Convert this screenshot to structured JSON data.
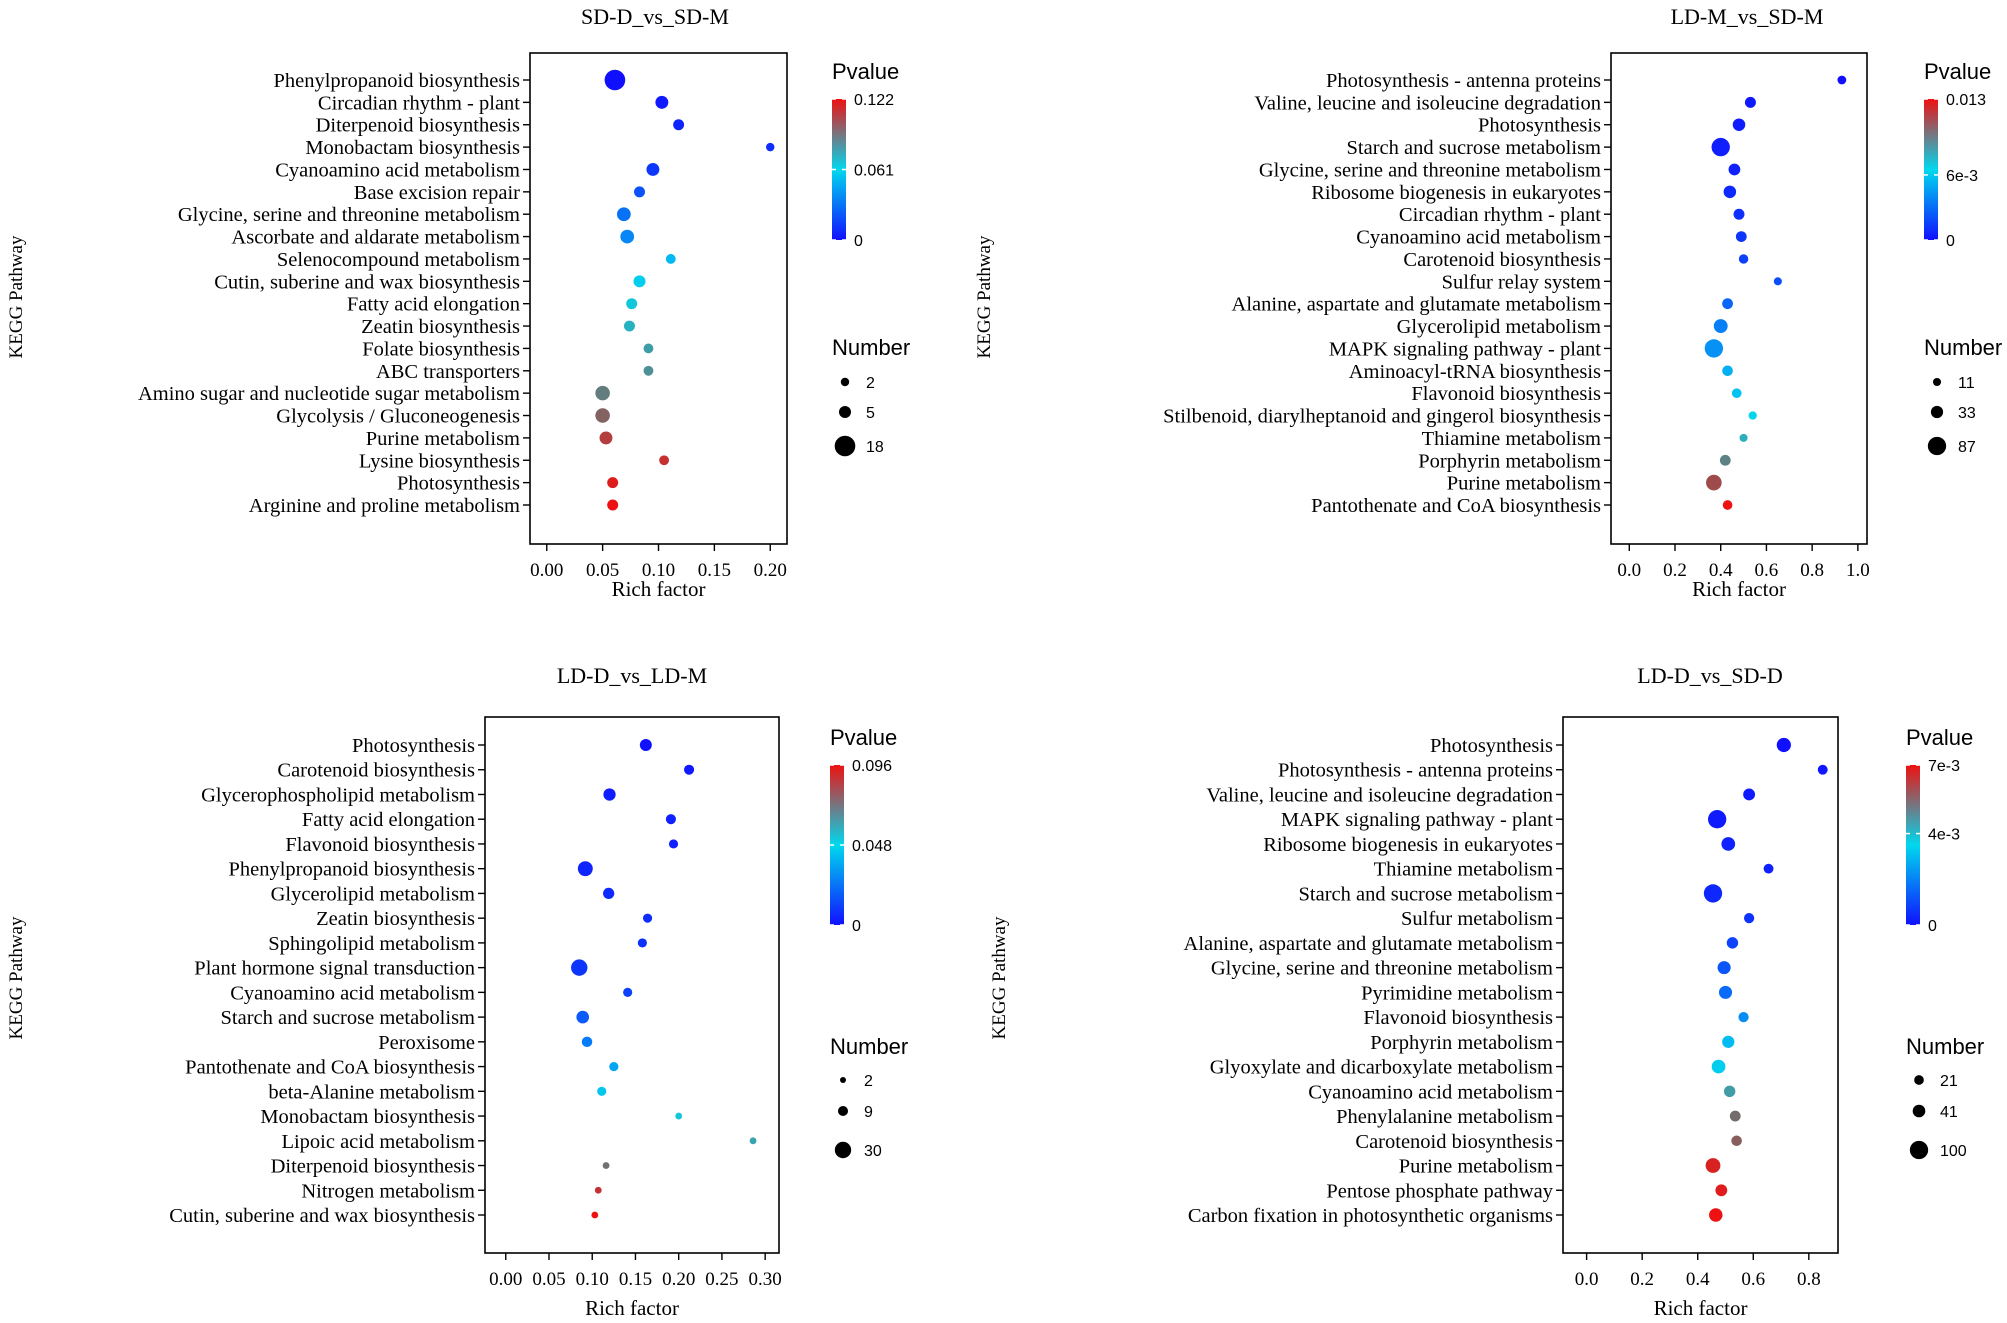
{
  "chart_data": [
    {
      "id": "p1",
      "type": "scatter",
      "title": "SD-D_vs_SD-M",
      "xlabel": "Rich factor",
      "ylabel": "KEGG Pathway",
      "xlim": [
        -0.015,
        0.215
      ],
      "xticks": [
        "0.00",
        "0.05",
        "0.10",
        "0.15",
        "0.20"
      ],
      "xtick_values": [
        0,
        0.05,
        0.1,
        0.15,
        0.2
      ],
      "grid": false,
      "colorbar": {
        "title": "Pvalue",
        "max": 0.122,
        "labels": [
          "0.122",
          "0.061",
          "0"
        ],
        "label_values": [
          0.122,
          0.061,
          0
        ]
      },
      "size_legend": {
        "title": "Number",
        "labels": [
          "2",
          "5",
          "18"
        ],
        "values": [
          2,
          5,
          18
        ]
      },
      "pathways": [
        {
          "name": "Phenylpropanoid biosynthesis",
          "x": 0.061,
          "count": 18,
          "pvalue": 0.0
        },
        {
          "name": "Circadian rhythm - plant",
          "x": 0.103,
          "count": 6,
          "pvalue": 0.003
        },
        {
          "name": "Diterpenoid biosynthesis",
          "x": 0.118,
          "count": 4,
          "pvalue": 0.006
        },
        {
          "name": "Monobactam biosynthesis",
          "x": 0.2,
          "count": 2,
          "pvalue": 0.009
        },
        {
          "name": "Cyanoamino acid metabolism",
          "x": 0.095,
          "count": 6,
          "pvalue": 0.012
        },
        {
          "name": "Base excision repair",
          "x": 0.083,
          "count": 4,
          "pvalue": 0.02
        },
        {
          "name": "Glycine, serine and threonine metabolism",
          "x": 0.069,
          "count": 7,
          "pvalue": 0.03
        },
        {
          "name": "Ascorbate and aldarate metabolism",
          "x": 0.072,
          "count": 7,
          "pvalue": 0.036
        },
        {
          "name": "Selenocompound metabolism",
          "x": 0.111,
          "count": 3,
          "pvalue": 0.052
        },
        {
          "name": "Cutin, suberine and wax biosynthesis",
          "x": 0.083,
          "count": 5,
          "pvalue": 0.058
        },
        {
          "name": "Fatty acid elongation",
          "x": 0.076,
          "count": 4,
          "pvalue": 0.066
        },
        {
          "name": "Zeatin biosynthesis",
          "x": 0.074,
          "count": 4,
          "pvalue": 0.072
        },
        {
          "name": "Folate biosynthesis",
          "x": 0.091,
          "count": 3,
          "pvalue": 0.078
        },
        {
          "name": "ABC transporters",
          "x": 0.091,
          "count": 3,
          "pvalue": 0.082
        },
        {
          "name": "Amino sugar and nucleotide sugar metabolism",
          "x": 0.05,
          "count": 8,
          "pvalue": 0.088
        },
        {
          "name": "Glycolysis / Gluconeogenesis",
          "x": 0.05,
          "count": 8,
          "pvalue": 0.096
        },
        {
          "name": "Purine metabolism",
          "x": 0.053,
          "count": 6,
          "pvalue": 0.108
        },
        {
          "name": "Lysine biosynthesis",
          "x": 0.105,
          "count": 3,
          "pvalue": 0.112
        },
        {
          "name": "Photosynthesis",
          "x": 0.059,
          "count": 4,
          "pvalue": 0.118
        },
        {
          "name": "Arginine and proline metabolism",
          "x": 0.059,
          "count": 4,
          "pvalue": 0.122
        }
      ]
    },
    {
      "id": "p2",
      "type": "scatter",
      "title": "LD-M_vs_SD-M",
      "xlabel": "Rich factor",
      "ylabel": "KEGG Pathway",
      "xlim": [
        -0.08,
        1.04
      ],
      "xticks": [
        "0.0",
        "0.2",
        "0.4",
        "0.6",
        "0.8",
        "1.0"
      ],
      "xtick_values": [
        0,
        0.2,
        0.4,
        0.6,
        0.8,
        1.0
      ],
      "grid": false,
      "colorbar": {
        "title": "Pvalue",
        "max": 0.013,
        "labels": [
          "0.013",
          "6e-3",
          "0"
        ],
        "label_values": [
          0.013,
          0.006,
          0
        ]
      },
      "size_legend": {
        "title": "Number",
        "labels": [
          "11",
          "33",
          "87"
        ],
        "values": [
          11,
          33,
          87
        ]
      },
      "pathways": [
        {
          "name": "Photosynthesis - antenna proteins",
          "x": 0.93,
          "count": 14,
          "pvalue": 0.0
        },
        {
          "name": "Valine, leucine and isoleucine degradation",
          "x": 0.53,
          "count": 25,
          "pvalue": 0.0003
        },
        {
          "name": "Photosynthesis",
          "x": 0.48,
          "count": 35,
          "pvalue": 0.0004
        },
        {
          "name": "Starch and sucrose metabolism",
          "x": 0.4,
          "count": 87,
          "pvalue": 0.0005
        },
        {
          "name": "Glycine, serine and threonine metabolism",
          "x": 0.46,
          "count": 30,
          "pvalue": 0.0006
        },
        {
          "name": "Ribosome biogenesis in eukaryotes",
          "x": 0.44,
          "count": 35,
          "pvalue": 0.0008
        },
        {
          "name": "Circadian rhythm - plant",
          "x": 0.48,
          "count": 25,
          "pvalue": 0.001
        },
        {
          "name": "Cyanoamino acid metabolism",
          "x": 0.49,
          "count": 24,
          "pvalue": 0.0012
        },
        {
          "name": "Carotenoid biosynthesis",
          "x": 0.5,
          "count": 17,
          "pvalue": 0.0016
        },
        {
          "name": "Sulfur relay system",
          "x": 0.65,
          "count": 11,
          "pvalue": 0.002
        },
        {
          "name": "Alanine, aspartate and glutamate metabolism",
          "x": 0.43,
          "count": 24,
          "pvalue": 0.0028
        },
        {
          "name": "Glycerolipid metabolism",
          "x": 0.4,
          "count": 45,
          "pvalue": 0.0036
        },
        {
          "name": "MAPK signaling pathway - plant",
          "x": 0.37,
          "count": 87,
          "pvalue": 0.0042
        },
        {
          "name": "Aminoacyl-tRNA biosynthesis",
          "x": 0.43,
          "count": 23,
          "pvalue": 0.0052
        },
        {
          "name": "Flavonoid biosynthesis",
          "x": 0.47,
          "count": 18,
          "pvalue": 0.0058
        },
        {
          "name": "Stilbenoid, diarylheptanoid and gingerol biosynthesis",
          "x": 0.54,
          "count": 12,
          "pvalue": 0.0066
        },
        {
          "name": "Thiamine metabolism",
          "x": 0.5,
          "count": 11,
          "pvalue": 0.0078
        },
        {
          "name": "Porphyrin metabolism",
          "x": 0.42,
          "count": 24,
          "pvalue": 0.0092
        },
        {
          "name": "Purine metabolism",
          "x": 0.37,
          "count": 60,
          "pvalue": 0.011
        },
        {
          "name": "Pantothenate and CoA biosynthesis",
          "x": 0.43,
          "count": 18,
          "pvalue": 0.013
        }
      ]
    },
    {
      "id": "p3",
      "type": "scatter",
      "title": "LD-D_vs_LD-M",
      "xlabel": "Rich factor",
      "ylabel": "KEGG Pathway",
      "xlim": [
        -0.024,
        0.316
      ],
      "xticks": [
        "0.00",
        "0.05",
        "0.10",
        "0.15",
        "0.20",
        "0.25",
        "0.30"
      ],
      "xtick_values": [
        0,
        0.05,
        0.1,
        0.15,
        0.2,
        0.25,
        0.3
      ],
      "grid": false,
      "colorbar": {
        "title": "Pvalue",
        "max": 0.096,
        "labels": [
          "0.096",
          "0.048",
          "0"
        ],
        "label_values": [
          0.096,
          0.048,
          0
        ]
      },
      "size_legend": {
        "title": "Number",
        "labels": [
          "2",
          "9",
          "30"
        ],
        "values": [
          2,
          9,
          30
        ]
      },
      "pathways": [
        {
          "name": "Photosynthesis",
          "x": 0.162,
          "count": 14,
          "pvalue": 0.0
        },
        {
          "name": "Carotenoid biosynthesis",
          "x": 0.212,
          "count": 9,
          "pvalue": 0.002
        },
        {
          "name": "Glycerophospholipid metabolism",
          "x": 0.12,
          "count": 15,
          "pvalue": 0.003
        },
        {
          "name": "Fatty acid elongation",
          "x": 0.191,
          "count": 9,
          "pvalue": 0.004
        },
        {
          "name": "Flavonoid biosynthesis",
          "x": 0.194,
          "count": 7,
          "pvalue": 0.004
        },
        {
          "name": "Phenylpropanoid biosynthesis",
          "x": 0.092,
          "count": 24,
          "pvalue": 0.005
        },
        {
          "name": "Glycerolipid metabolism",
          "x": 0.119,
          "count": 12,
          "pvalue": 0.006
        },
        {
          "name": "Zeatin biosynthesis",
          "x": 0.164,
          "count": 7,
          "pvalue": 0.007
        },
        {
          "name": "Sphingolipid metabolism",
          "x": 0.158,
          "count": 7,
          "pvalue": 0.008
        },
        {
          "name": "Plant hormone signal transduction",
          "x": 0.085,
          "count": 30,
          "pvalue": 0.009
        },
        {
          "name": "Cyanoamino acid metabolism",
          "x": 0.141,
          "count": 7,
          "pvalue": 0.012
        },
        {
          "name": "Starch and sucrose metabolism",
          "x": 0.089,
          "count": 16,
          "pvalue": 0.018
        },
        {
          "name": "Peroxisome",
          "x": 0.094,
          "count": 10,
          "pvalue": 0.026
        },
        {
          "name": "Pantothenate and CoA biosynthesis",
          "x": 0.125,
          "count": 7,
          "pvalue": 0.036
        },
        {
          "name": "beta-Alanine metabolism",
          "x": 0.111,
          "count": 7,
          "pvalue": 0.044
        },
        {
          "name": "Monobactam biosynthesis",
          "x": 0.2,
          "count": 3,
          "pvalue": 0.052
        },
        {
          "name": "Lipoic acid metabolism",
          "x": 0.286,
          "count": 3,
          "pvalue": 0.06
        },
        {
          "name": "Diterpenoid biosynthesis",
          "x": 0.116,
          "count": 3,
          "pvalue": 0.072
        },
        {
          "name": "Nitrogen metabolism",
          "x": 0.107,
          "count": 3,
          "pvalue": 0.088
        },
        {
          "name": "Cutin, suberine and wax biosynthesis",
          "x": 0.103,
          "count": 3,
          "pvalue": 0.096
        }
      ]
    },
    {
      "id": "p4",
      "type": "scatter",
      "title": "LD-D_vs_SD-D",
      "xlabel": "Rich factor",
      "ylabel": "KEGG Pathway",
      "xlim": [
        -0.085,
        0.905
      ],
      "xticks": [
        "0.0",
        "0.2",
        "0.4",
        "0.6",
        "0.8"
      ],
      "xtick_values": [
        0,
        0.2,
        0.4,
        0.6,
        0.8
      ],
      "grid": false,
      "colorbar": {
        "title": "Pvalue",
        "max": 0.007,
        "labels": [
          "7e-3",
          "4e-3",
          "0"
        ],
        "label_values": [
          0.007,
          0.004,
          0
        ]
      },
      "size_legend": {
        "title": "Number",
        "labels": [
          "21",
          "41",
          "100"
        ],
        "values": [
          21,
          41,
          100
        ]
      },
      "pathways": [
        {
          "name": "Photosynthesis",
          "x": 0.71,
          "count": 55,
          "pvalue": 0.0
        },
        {
          "name": "Photosynthesis - antenna proteins",
          "x": 0.85,
          "count": 22,
          "pvalue": 0.0001
        },
        {
          "name": "Valine, leucine and isoleucine degradation",
          "x": 0.585,
          "count": 35,
          "pvalue": 0.0002
        },
        {
          "name": "MAPK signaling pathway - plant",
          "x": 0.47,
          "count": 100,
          "pvalue": 0.0002
        },
        {
          "name": "Ribosome biogenesis in eukaryotes",
          "x": 0.51,
          "count": 50,
          "pvalue": 0.0003
        },
        {
          "name": "Thiamine metabolism",
          "x": 0.655,
          "count": 22,
          "pvalue": 0.0003
        },
        {
          "name": "Starch and sucrose metabolism",
          "x": 0.455,
          "count": 100,
          "pvalue": 0.0004
        },
        {
          "name": "Sulfur metabolism",
          "x": 0.585,
          "count": 24,
          "pvalue": 0.0006
        },
        {
          "name": "Alanine, aspartate and glutamate metabolism",
          "x": 0.525,
          "count": 32,
          "pvalue": 0.0009
        },
        {
          "name": "Glycine, serine and threonine metabolism",
          "x": 0.495,
          "count": 45,
          "pvalue": 0.0012
        },
        {
          "name": "Pyrimidine metabolism",
          "x": 0.5,
          "count": 45,
          "pvalue": 0.0016
        },
        {
          "name": "Flavonoid biosynthesis",
          "x": 0.565,
          "count": 24,
          "pvalue": 0.0022
        },
        {
          "name": "Porphyrin metabolism",
          "x": 0.51,
          "count": 38,
          "pvalue": 0.003
        },
        {
          "name": "Glyoxylate and dicarboxylate metabolism",
          "x": 0.475,
          "count": 50,
          "pvalue": 0.0033
        },
        {
          "name": "Cyanoamino acid metabolism",
          "x": 0.515,
          "count": 32,
          "pvalue": 0.0045
        },
        {
          "name": "Phenylalanine metabolism",
          "x": 0.535,
          "count": 28,
          "pvalue": 0.0053
        },
        {
          "name": "Carotenoid biosynthesis",
          "x": 0.54,
          "count": 26,
          "pvalue": 0.0056
        },
        {
          "name": "Purine metabolism",
          "x": 0.455,
          "count": 60,
          "pvalue": 0.0067
        },
        {
          "name": "Pentose phosphate pathway",
          "x": 0.485,
          "count": 35,
          "pvalue": 0.0068
        },
        {
          "name": "Carbon fixation in photosynthetic organisms",
          "x": 0.465,
          "count": 48,
          "pvalue": 0.007
        }
      ]
    }
  ]
}
